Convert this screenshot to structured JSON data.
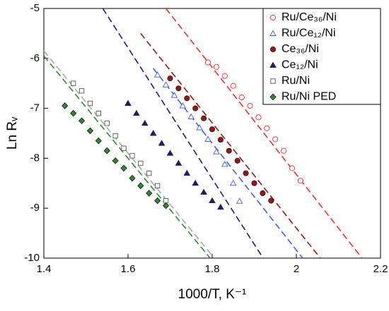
{
  "chart_data": {
    "type": "scatter",
    "xlabel": "1000/T, K⁻¹",
    "ylabel": "Ln Rᵥ",
    "xlim": [
      1.4,
      2.2
    ],
    "xticks": [
      1.4,
      1.6,
      1.8,
      2.0,
      2.2
    ],
    "ylim": [
      -10,
      -5
    ],
    "yticks": [
      -10,
      -9,
      -8,
      -7,
      -6,
      -5
    ],
    "legend": "top-right",
    "series": [
      {
        "name": "Ru/Ce₃₆/Ni",
        "color": "#ff2a2a",
        "marker": "circle-open",
        "x": [
          1.79,
          1.81,
          1.83,
          1.85,
          1.87,
          1.89,
          1.91,
          1.93,
          1.95,
          1.97,
          1.99,
          2.01
        ],
        "values": [
          -6.08,
          -6.17,
          -6.35,
          -6.55,
          -6.78,
          -6.95,
          -7.18,
          -7.4,
          -7.62,
          -7.85,
          -8.2,
          -8.45
        ]
      },
      {
        "name": "Ru/Ce₁₂/Ni",
        "color": "#3a5cff",
        "marker": "triangle-open",
        "x": [
          1.67,
          1.69,
          1.71,
          1.73,
          1.75,
          1.77,
          1.79,
          1.81,
          1.83,
          1.85,
          1.865
        ],
        "values": [
          -6.33,
          -6.53,
          -6.74,
          -6.95,
          -7.17,
          -7.39,
          -7.62,
          -7.87,
          -8.12,
          -8.5,
          -8.86
        ]
      },
      {
        "name": "Ce₃₆/Ni",
        "color": "#9b1515",
        "marker": "circle",
        "x": [
          1.7,
          1.72,
          1.74,
          1.76,
          1.78,
          1.8,
          1.82,
          1.84,
          1.86,
          1.88,
          1.9,
          1.92,
          1.94
        ],
        "values": [
          -6.4,
          -6.6,
          -6.8,
          -7.0,
          -7.2,
          -7.42,
          -7.63,
          -7.85,
          -8.05,
          -8.3,
          -8.5,
          -8.7,
          -8.85
        ]
      },
      {
        "name": "Ce₁₂/Ni",
        "color": "#1a1a8c",
        "marker": "triangle",
        "x": [
          1.6,
          1.62,
          1.64,
          1.66,
          1.68,
          1.7,
          1.72,
          1.74,
          1.76,
          1.78,
          1.8,
          1.82
        ],
        "values": [
          -6.9,
          -7.1,
          -7.3,
          -7.5,
          -7.7,
          -7.9,
          -8.1,
          -8.3,
          -8.5,
          -8.68,
          -8.85,
          -8.98
        ]
      },
      {
        "name": "Ru/Ni",
        "color": "#555555",
        "marker": "square-open",
        "x": [
          1.47,
          1.49,
          1.51,
          1.53,
          1.55,
          1.57,
          1.59,
          1.61,
          1.63,
          1.65,
          1.67,
          1.69
        ],
        "values": [
          -6.5,
          -6.65,
          -6.9,
          -7.1,
          -7.3,
          -7.55,
          -7.8,
          -7.95,
          -8.1,
          -8.3,
          -8.55,
          -8.85
        ]
      },
      {
        "name": "Ru/Ni PED",
        "color": "#2e8b2e",
        "marker": "diamond",
        "x": [
          1.45,
          1.47,
          1.49,
          1.51,
          1.53,
          1.55,
          1.57,
          1.59,
          1.61,
          1.63,
          1.65,
          1.67,
          1.69
        ],
        "values": [
          -6.95,
          -7.1,
          -7.25,
          -7.45,
          -7.65,
          -7.85,
          -8.05,
          -8.2,
          -8.4,
          -8.55,
          -8.7,
          -8.85,
          -8.95
        ]
      }
    ],
    "fit_lines": [
      {
        "color": "#ff2a2a",
        "x": [
          1.69,
          2.156
        ],
        "values": [
          -5,
          -10
        ]
      },
      {
        "color": "#9b1515",
        "x": [
          1.63,
          2.057
        ],
        "values": [
          -5.5,
          -10
        ]
      },
      {
        "color": "#3a5cff",
        "x": [
          1.66,
          2.015
        ],
        "values": [
          -6.2,
          -10
        ]
      },
      {
        "color": "#1a1a8c",
        "x": [
          1.54,
          1.921
        ],
        "values": [
          -5,
          -10
        ]
      },
      {
        "color": "#aaaaaa",
        "x": [
          1.4,
          1.805
        ],
        "values": [
          -5.85,
          -10
        ]
      },
      {
        "color": "#2e8b2e",
        "x": [
          1.4,
          1.795
        ],
        "values": [
          -5.95,
          -10
        ]
      }
    ]
  }
}
